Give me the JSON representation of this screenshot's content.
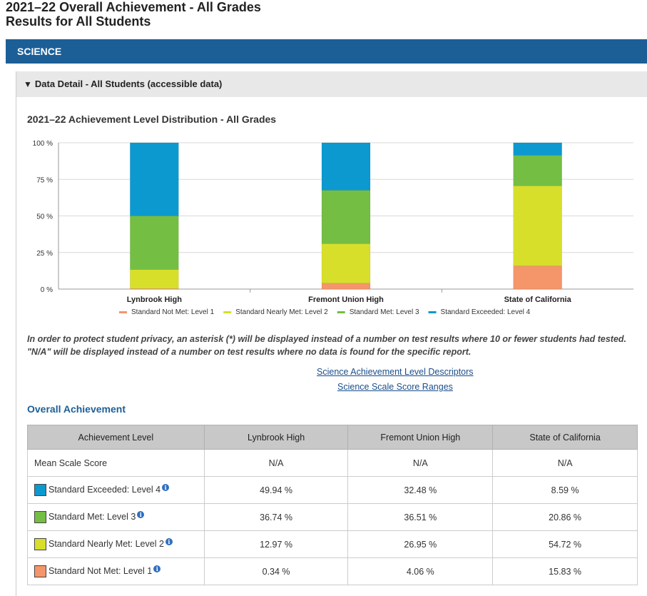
{
  "page": {
    "title_line1": "2021–22 Overall Achievement - All Grades",
    "title_line2": "Results for All Students"
  },
  "section": {
    "label": "SCIENCE",
    "color": "#1c5f97"
  },
  "panel": {
    "header_icon": "collapse-triangle-icon",
    "header_label": "Data Detail - All Students (accessible data)"
  },
  "chart_data": {
    "type": "bar",
    "stacked": true,
    "title": "2021–22 Achievement Level Distribution - All Grades",
    "categories": [
      "Lynbrook High",
      "Fremont Union High",
      "State of California"
    ],
    "y_ticks": [
      "100 %",
      "75 %",
      "50 %",
      "25 %",
      "0 %"
    ],
    "ylim": [
      0,
      100
    ],
    "grid": true,
    "legend_position": "bottom",
    "series": [
      {
        "name": "Standard Not Met: Level 1",
        "color": "#f4956a",
        "values": [
          0.34,
          4.06,
          15.83
        ]
      },
      {
        "name": "Standard Nearly Met: Level 2",
        "color": "#d8df2a",
        "values": [
          12.97,
          26.95,
          54.72
        ]
      },
      {
        "name": "Standard Met: Level 3",
        "color": "#74be44",
        "values": [
          36.74,
          36.51,
          20.86
        ]
      },
      {
        "name": "Standard Exceeded: Level 4",
        "color": "#0c99cf",
        "values": [
          49.94,
          32.48,
          8.59
        ]
      }
    ]
  },
  "note": {
    "line1": "In order to protect student privacy, an asterisk (*) will be displayed instead of a number on test results where 10 or fewer students had tested.",
    "line2": "\"N/A\" will be displayed instead of a number on test results where no data is found for the specific report."
  },
  "links": {
    "descriptors": "Science Achievement Level Descriptors",
    "scale_ranges": "Science Scale Score Ranges"
  },
  "overall": {
    "title": "Overall Achievement",
    "headers": [
      "Achievement Level",
      "Lynbrook High",
      "Fremont Union High",
      "State of California"
    ],
    "rows": [
      {
        "label": "Mean Scale Score",
        "swatch": null,
        "info": false,
        "values": [
          "N/A",
          "N/A",
          "N/A"
        ]
      },
      {
        "label": "Standard Exceeded: Level 4",
        "swatch": "#0c99cf",
        "info": true,
        "values": [
          "49.94 %",
          "32.48 %",
          "8.59 %"
        ]
      },
      {
        "label": "Standard Met: Level 3",
        "swatch": "#74be44",
        "info": true,
        "values": [
          "36.74 %",
          "36.51 %",
          "20.86 %"
        ]
      },
      {
        "label": "Standard Nearly Met: Level 2",
        "swatch": "#d8df2a",
        "info": true,
        "values": [
          "12.97 %",
          "26.95 %",
          "54.72 %"
        ]
      },
      {
        "label": "Standard Not Met: Level 1",
        "swatch": "#f4956a",
        "info": true,
        "values": [
          "0.34 %",
          "4.06 %",
          "15.83 %"
        ]
      }
    ]
  }
}
